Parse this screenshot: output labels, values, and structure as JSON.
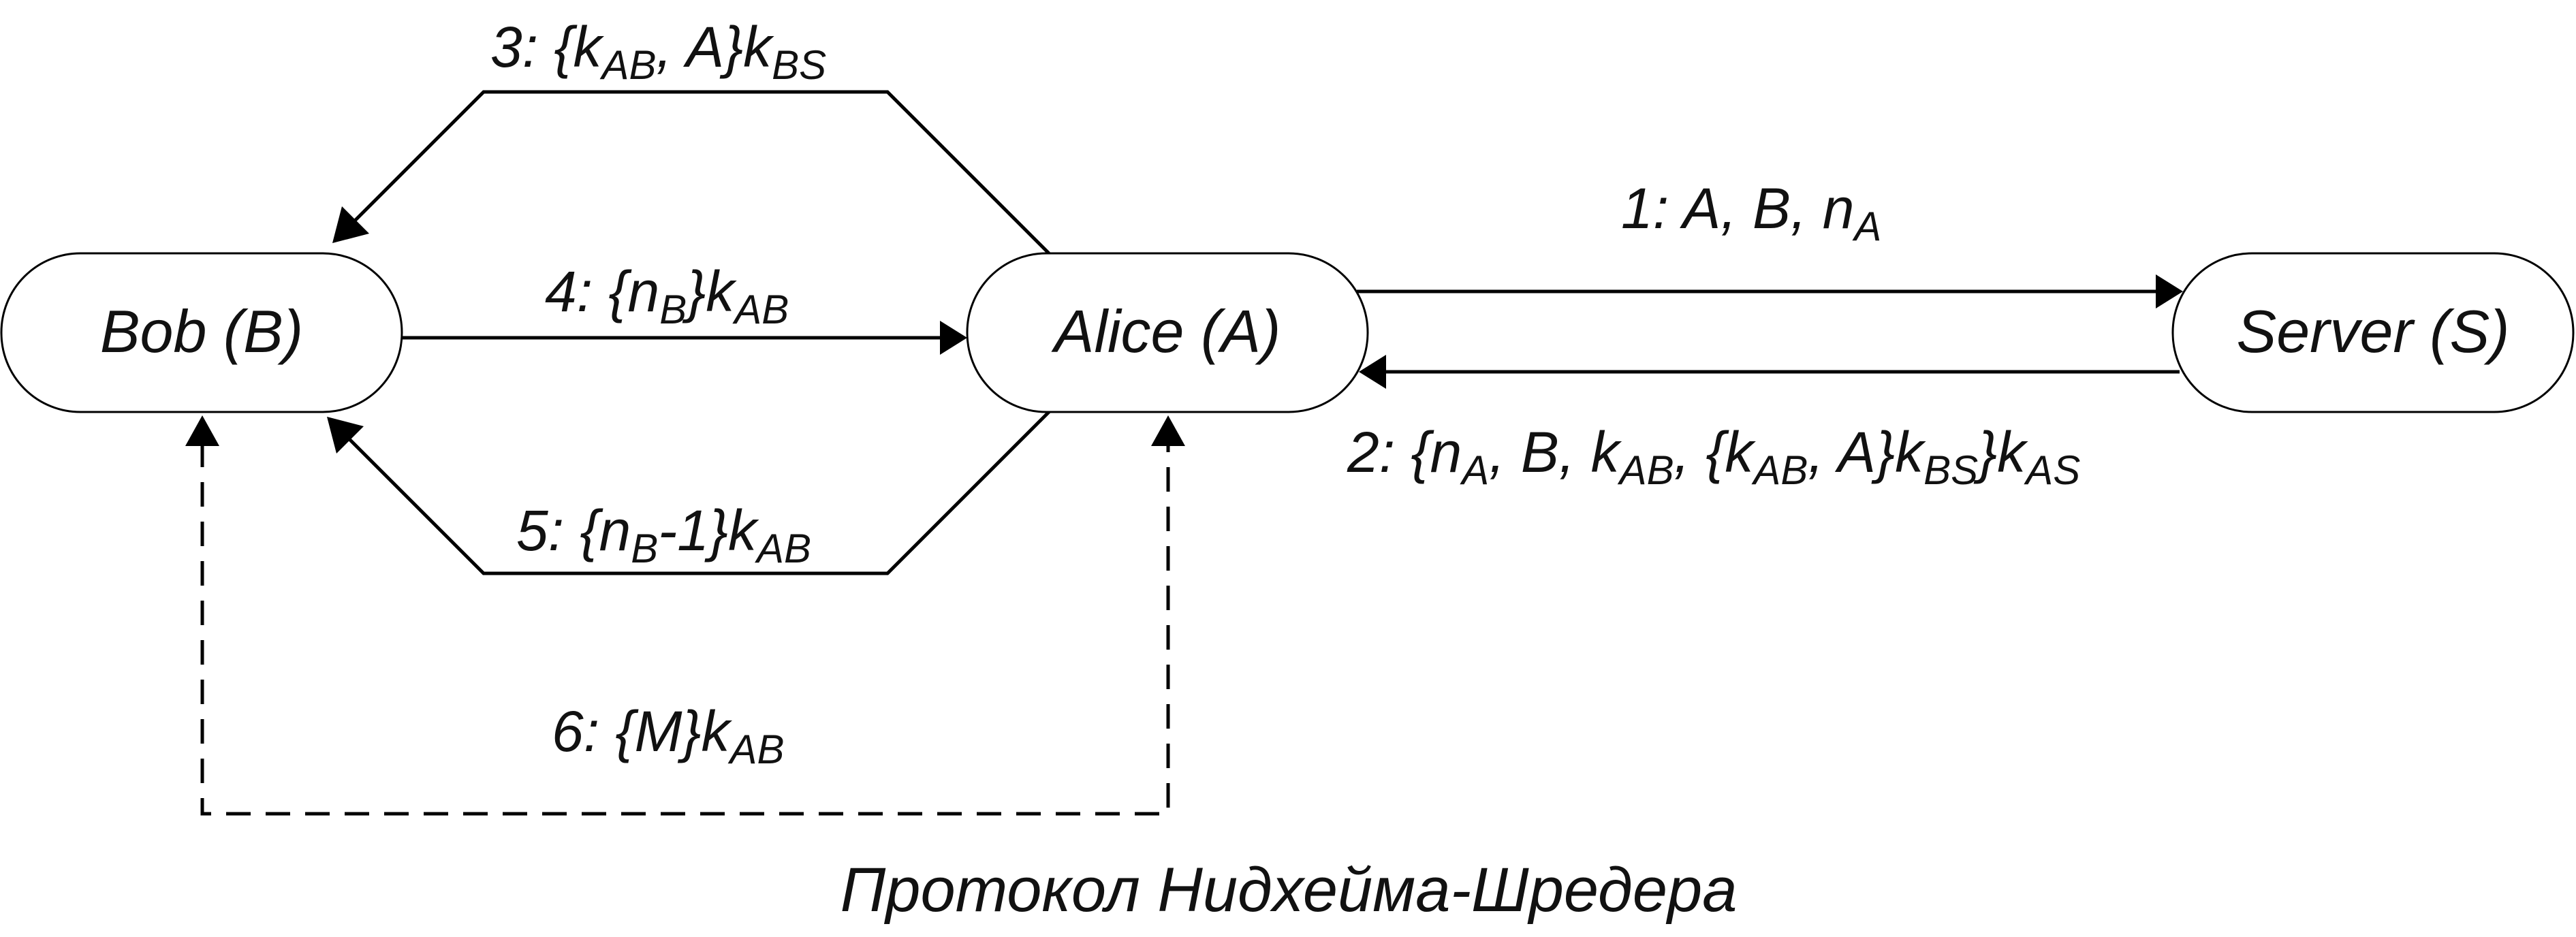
{
  "nodes": {
    "bob": {
      "label": "Bob (B)"
    },
    "alice": {
      "label": "Alice (A)"
    },
    "server": {
      "label": "Server (S)"
    }
  },
  "messages": {
    "m1": {
      "num": "1:",
      "parts": [
        "A, B, n",
        "A"
      ]
    },
    "m2": {
      "num": "2:",
      "parts": [
        "{n",
        "A",
        ", B, k",
        "AB",
        ", {k",
        "AB",
        ", A}k",
        "BS",
        "}k",
        "AS"
      ]
    },
    "m3": {
      "num": "3:",
      "parts": [
        "{k",
        "AB",
        ", A}k",
        "BS"
      ]
    },
    "m4": {
      "num": "4:",
      "parts": [
        "{n",
        "B",
        "}k",
        "AB"
      ]
    },
    "m5": {
      "num": "5:",
      "parts": [
        "{n",
        "B",
        "-1}k",
        "AB"
      ]
    },
    "m6": {
      "num": "6:",
      "parts": [
        "{M}k",
        "AB"
      ]
    }
  },
  "caption": "Протокол Нидхейма-Шредера"
}
